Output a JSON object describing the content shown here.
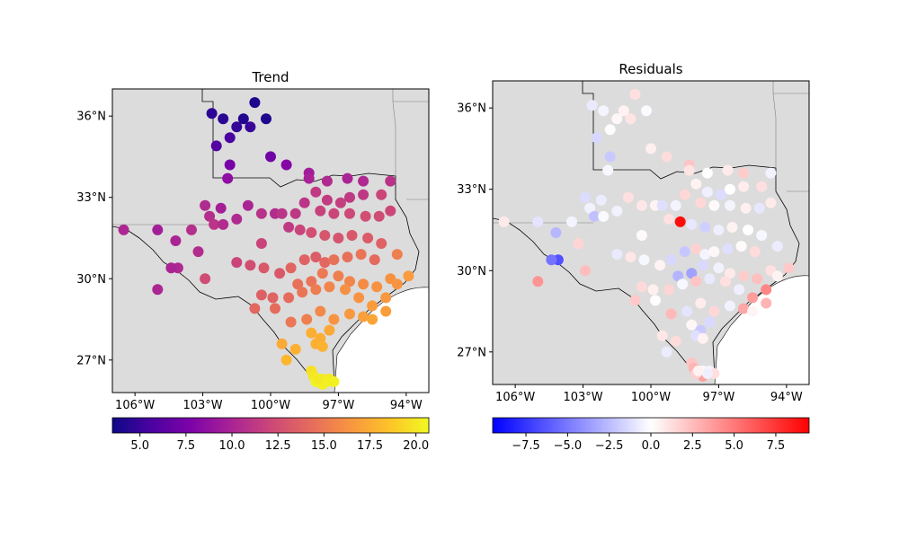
{
  "chart_data": [
    {
      "type": "scatter",
      "title": "Trend",
      "colormap": "plasma",
      "xlim": [
        -107,
        -93
      ],
      "ylim": [
        25.8,
        37.0
      ],
      "x_ticks": [
        -106,
        -103,
        -100,
        -97,
        -94
      ],
      "x_tick_labels": [
        "106°W",
        "103°W",
        "100°W",
        "97°W",
        "94°W"
      ],
      "y_ticks": [
        27,
        30,
        33,
        36
      ],
      "y_tick_labels": [
        "27°N",
        "30°N",
        "33°N",
        "36°N"
      ],
      "colorbar": {
        "vmin": 3.5,
        "vmax": 20.7,
        "ticks": [
          5.0,
          7.5,
          10.0,
          12.5,
          15.0,
          17.5,
          20.0
        ],
        "tick_labels": [
          "5.0",
          "7.5",
          "10.0",
          "12.5",
          "15.0",
          "17.5",
          "20.0"
        ]
      },
      "points": [
        [
          -100.7,
          36.5,
          4.0
        ],
        [
          -101.2,
          35.9,
          4.2
        ],
        [
          -100.2,
          35.9,
          4.1
        ],
        [
          -102.1,
          35.9,
          4.5
        ],
        [
          -102.6,
          36.1,
          4.6
        ],
        [
          -101.5,
          35.6,
          4.8
        ],
        [
          -100.9,
          35.6,
          5.0
        ],
        [
          -101.8,
          35.2,
          5.6
        ],
        [
          -102.4,
          34.9,
          6.0
        ],
        [
          -100.0,
          34.5,
          7.2
        ],
        [
          -101.8,
          34.2,
          7.5
        ],
        [
          -99.3,
          34.2,
          8.1
        ],
        [
          -101.9,
          33.7,
          8.6
        ],
        [
          -98.3,
          33.9,
          9.5
        ],
        [
          -98.3,
          33.7,
          9.9
        ],
        [
          -97.5,
          33.6,
          10.4
        ],
        [
          -96.6,
          33.7,
          10.0
        ],
        [
          -95.9,
          33.6,
          10.3
        ],
        [
          -94.7,
          33.6,
          10.9
        ],
        [
          -106.5,
          31.8,
          10.2
        ],
        [
          -105.0,
          31.8,
          9.6
        ],
        [
          -104.2,
          31.4,
          10.0
        ],
        [
          -103.5,
          31.8,
          10.6
        ],
        [
          -102.9,
          32.7,
          10.4
        ],
        [
          -102.7,
          32.3,
          10.6
        ],
        [
          -102.5,
          32.0,
          11.0
        ],
        [
          -102.2,
          32.6,
          9.7
        ],
        [
          -102.1,
          32.0,
          10.5
        ],
        [
          -101.5,
          32.2,
          10.4
        ],
        [
          -101.0,
          32.7,
          10.0
        ],
        [
          -100.4,
          32.4,
          10.9
        ],
        [
          -99.8,
          32.4,
          10.5
        ],
        [
          -99.5,
          32.4,
          11.0
        ],
        [
          -98.9,
          32.4,
          11.2
        ],
        [
          -98.5,
          32.8,
          11.0
        ],
        [
          -98.0,
          33.2,
          11.3
        ],
        [
          -97.5,
          32.9,
          11.4
        ],
        [
          -96.9,
          32.8,
          11.6
        ],
        [
          -96.5,
          33.0,
          11.3
        ],
        [
          -95.9,
          33.1,
          11.2
        ],
        [
          -95.1,
          33.1,
          12.0
        ],
        [
          -97.8,
          32.5,
          11.8
        ],
        [
          -97.2,
          32.4,
          12.0
        ],
        [
          -96.5,
          32.4,
          12.2
        ],
        [
          -95.8,
          32.3,
          12.5
        ],
        [
          -95.2,
          32.3,
          12.4
        ],
        [
          -94.7,
          32.5,
          12.1
        ],
        [
          -99.2,
          31.9,
          11.3
        ],
        [
          -98.7,
          31.8,
          11.9
        ],
        [
          -98.2,
          31.7,
          12.6
        ],
        [
          -97.6,
          31.6,
          13.0
        ],
        [
          -97.0,
          31.5,
          12.9
        ],
        [
          -96.4,
          31.6,
          13.2
        ],
        [
          -95.7,
          31.5,
          13.3
        ],
        [
          -95.1,
          31.3,
          13.7
        ],
        [
          -94.4,
          30.9,
          15.3
        ],
        [
          -100.4,
          31.3,
          11.9
        ],
        [
          -103.2,
          31.0,
          10.5
        ],
        [
          -104.1,
          30.4,
          10.3
        ],
        [
          -104.4,
          30.4,
          10.0
        ],
        [
          -105.0,
          29.6,
          10.1
        ],
        [
          -102.9,
          30.0,
          12.4
        ],
        [
          -101.5,
          30.6,
          12.0
        ],
        [
          -100.9,
          30.5,
          12.5
        ],
        [
          -100.3,
          30.4,
          13.2
        ],
        [
          -99.6,
          30.2,
          13.2
        ],
        [
          -99.1,
          30.4,
          13.9
        ],
        [
          -98.5,
          30.7,
          13.7
        ],
        [
          -98.0,
          30.8,
          13.4
        ],
        [
          -97.6,
          30.6,
          14.0
        ],
        [
          -97.2,
          30.7,
          14.6
        ],
        [
          -96.6,
          30.8,
          14.5
        ],
        [
          -96.0,
          30.9,
          14.7
        ],
        [
          -95.4,
          30.7,
          14.2
        ],
        [
          -94.7,
          30.0,
          16.3
        ],
        [
          -93.9,
          30.1,
          16.7
        ],
        [
          -94.4,
          29.8,
          16.4
        ],
        [
          -98.8,
          29.8,
          14.5
        ],
        [
          -98.2,
          29.9,
          14.7
        ],
        [
          -97.7,
          30.2,
          15.0
        ],
        [
          -97.0,
          30.1,
          15.3
        ],
        [
          -96.5,
          29.9,
          15.6
        ],
        [
          -95.9,
          29.8,
          16.0
        ],
        [
          -95.3,
          29.7,
          16.3
        ],
        [
          -94.9,
          29.3,
          16.6
        ],
        [
          -100.4,
          29.4,
          13.6
        ],
        [
          -99.9,
          29.3,
          13.8
        ],
        [
          -99.2,
          29.3,
          14.3
        ],
        [
          -98.6,
          29.5,
          14.8
        ],
        [
          -98.0,
          29.6,
          15.2
        ],
        [
          -97.4,
          29.7,
          15.6
        ],
        [
          -96.7,
          29.6,
          16.2
        ],
        [
          -96.1,
          29.3,
          16.4
        ],
        [
          -95.5,
          29.0,
          16.7
        ],
        [
          -94.9,
          28.8,
          16.8
        ],
        [
          -100.7,
          28.9,
          14.0
        ],
        [
          -99.8,
          28.9,
          14.3
        ],
        [
          -99.1,
          28.4,
          14.9
        ],
        [
          -98.4,
          28.5,
          15.3
        ],
        [
          -97.8,
          28.8,
          15.8
        ],
        [
          -97.2,
          28.5,
          16.4
        ],
        [
          -96.5,
          28.7,
          16.6
        ],
        [
          -95.9,
          28.6,
          16.9
        ],
        [
          -95.5,
          28.5,
          17.2
        ],
        [
          -97.4,
          28.1,
          17.3
        ],
        [
          -98.2,
          28.0,
          17.6
        ],
        [
          -97.8,
          27.8,
          17.6
        ],
        [
          -98.0,
          27.6,
          17.7
        ],
        [
          -99.5,
          27.6,
          17.4
        ],
        [
          -98.9,
          27.4,
          17.7
        ],
        [
          -97.7,
          27.5,
          17.8
        ],
        [
          -99.3,
          27.0,
          18.0
        ],
        [
          -98.2,
          26.6,
          19.8
        ],
        [
          -98.1,
          26.4,
          20.0
        ],
        [
          -97.7,
          26.3,
          20.2
        ],
        [
          -97.4,
          26.3,
          20.0
        ],
        [
          -97.7,
          26.1,
          20.3
        ],
        [
          -97.2,
          26.2,
          20.4
        ],
        [
          -98.0,
          26.2,
          20.5
        ],
        [
          -97.5,
          26.2,
          20.3
        ],
        [
          -97.9,
          26.3,
          20.1
        ]
      ]
    },
    {
      "type": "scatter",
      "title": "Residuals",
      "colormap": "bwr",
      "xlim": [
        -107,
        -93
      ],
      "ylim": [
        25.8,
        37.0
      ],
      "x_ticks": [
        -106,
        -103,
        -100,
        -97,
        -94
      ],
      "x_tick_labels": [
        "106°W",
        "103°W",
        "100°W",
        "97°W",
        "94°W"
      ],
      "y_ticks": [
        27,
        30,
        33,
        36
      ],
      "y_tick_labels": [
        "27°N",
        "30°N",
        "33°N",
        "36°N"
      ],
      "colorbar": {
        "vmin": -9.5,
        "vmax": 9.5,
        "ticks": [
          -7.5,
          -5.0,
          -2.5,
          0.0,
          2.5,
          5.0,
          7.5
        ],
        "tick_labels": [
          "−7.5",
          "−5.0",
          "−2.5",
          "0.0",
          "2.5",
          "5.0",
          "7.5"
        ]
      },
      "points": [
        [
          -100.7,
          36.5,
          1.2
        ],
        [
          -101.2,
          35.9,
          0.5
        ],
        [
          -100.2,
          35.9,
          -0.2
        ],
        [
          -102.1,
          35.9,
          -0.4
        ],
        [
          -102.6,
          36.1,
          -0.8
        ],
        [
          -101.5,
          35.6,
          0.3
        ],
        [
          -100.9,
          35.6,
          1.0
        ],
        [
          -101.8,
          35.2,
          0.1
        ],
        [
          -102.4,
          34.9,
          -1.5
        ],
        [
          -100.0,
          34.5,
          0.6
        ],
        [
          -101.8,
          34.2,
          -2.0
        ],
        [
          -99.3,
          34.2,
          1.3
        ],
        [
          -101.9,
          33.7,
          -0.3
        ],
        [
          -98.3,
          33.9,
          2.2
        ],
        [
          -98.3,
          33.7,
          1.0
        ],
        [
          -97.5,
          33.6,
          0.0
        ],
        [
          -96.6,
          33.7,
          0.8
        ],
        [
          -95.9,
          33.6,
          1.9
        ],
        [
          -94.7,
          33.6,
          -0.5
        ],
        [
          -106.5,
          31.8,
          0.8
        ],
        [
          -105.0,
          31.8,
          -1.0
        ],
        [
          -104.2,
          31.4,
          -2.7
        ],
        [
          -103.5,
          31.8,
          -0.4
        ],
        [
          -102.9,
          32.7,
          -1.3
        ],
        [
          -102.7,
          32.3,
          -0.5
        ],
        [
          -102.5,
          32.0,
          -2.3
        ],
        [
          -102.2,
          32.6,
          -0.7
        ],
        [
          -102.1,
          32.0,
          -0.2
        ],
        [
          -101.5,
          32.2,
          -0.5
        ],
        [
          -101.0,
          32.7,
          1.2
        ],
        [
          -100.4,
          32.4,
          0.9
        ],
        [
          -99.8,
          32.4,
          0.4
        ],
        [
          -99.5,
          32.4,
          -1.2
        ],
        [
          -98.9,
          32.4,
          -0.4
        ],
        [
          -98.5,
          32.8,
          1.5
        ],
        [
          -98.0,
          33.2,
          0.5
        ],
        [
          -97.5,
          32.9,
          -0.6
        ],
        [
          -96.9,
          32.8,
          -1.3
        ],
        [
          -96.5,
          33.0,
          0.0
        ],
        [
          -95.9,
          33.1,
          0.7
        ],
        [
          -95.1,
          33.1,
          1.2
        ],
        [
          -97.8,
          32.5,
          1.5
        ],
        [
          -97.2,
          32.4,
          0.2
        ],
        [
          -96.5,
          32.4,
          -0.4
        ],
        [
          -95.8,
          32.3,
          0.6
        ],
        [
          -95.2,
          32.3,
          -0.9
        ],
        [
          -94.7,
          32.5,
          0.8
        ],
        [
          -99.2,
          31.9,
          1.1
        ],
        [
          -98.7,
          31.8,
          9.0
        ],
        [
          -98.2,
          31.7,
          -0.9
        ],
        [
          -97.6,
          31.6,
          -1.8
        ],
        [
          -97.0,
          31.5,
          -0.6
        ],
        [
          -96.4,
          31.6,
          0.5
        ],
        [
          -95.7,
          31.5,
          0.0
        ],
        [
          -95.1,
          31.3,
          -0.3
        ],
        [
          -94.4,
          30.9,
          -0.7
        ],
        [
          -100.4,
          31.3,
          0.2
        ],
        [
          -103.2,
          31.0,
          1.6
        ],
        [
          -104.1,
          30.4,
          -6.5
        ],
        [
          -104.4,
          30.4,
          -5.2
        ],
        [
          -105.0,
          29.6,
          4.0
        ],
        [
          -102.9,
          30.0,
          2.5
        ],
        [
          -101.5,
          30.6,
          -0.8
        ],
        [
          -100.9,
          30.5,
          0.9
        ],
        [
          -100.3,
          30.4,
          -0.3
        ],
        [
          -99.6,
          30.2,
          0.5
        ],
        [
          -99.1,
          30.4,
          -1.5
        ],
        [
          -98.5,
          30.7,
          -2.1
        ],
        [
          -98.0,
          30.8,
          1.7
        ],
        [
          -97.6,
          30.6,
          -0.4
        ],
        [
          -97.2,
          30.7,
          0.3
        ],
        [
          -96.6,
          30.8,
          -1.2
        ],
        [
          -96.0,
          30.9,
          0.2
        ],
        [
          -95.4,
          30.7,
          1.3
        ],
        [
          -94.7,
          30.0,
          1.1
        ],
        [
          -93.9,
          30.1,
          2.0
        ],
        [
          -94.4,
          29.8,
          0.5
        ],
        [
          -98.8,
          29.8,
          -2.8
        ],
        [
          -98.2,
          29.9,
          -3.5
        ],
        [
          -97.7,
          30.2,
          -1.4
        ],
        [
          -97.0,
          30.1,
          -0.5
        ],
        [
          -96.5,
          29.9,
          0.8
        ],
        [
          -95.9,
          29.8,
          1.9
        ],
        [
          -95.3,
          29.7,
          2.4
        ],
        [
          -94.9,
          29.3,
          4.5
        ],
        [
          -100.4,
          29.4,
          1.4
        ],
        [
          -99.9,
          29.3,
          0.6
        ],
        [
          -99.2,
          29.3,
          1.6
        ],
        [
          -98.6,
          29.5,
          -0.3
        ],
        [
          -98.0,
          29.6,
          2.2
        ],
        [
          -97.4,
          29.7,
          -0.8
        ],
        [
          -96.7,
          29.6,
          1.2
        ],
        [
          -96.1,
          29.3,
          -0.6
        ],
        [
          -95.5,
          29.0,
          3.7
        ],
        [
          -94.9,
          28.8,
          2.8
        ],
        [
          -100.7,
          28.9,
          2.0
        ],
        [
          -99.8,
          28.9,
          0.1
        ],
        [
          -99.1,
          28.4,
          2.6
        ],
        [
          -98.4,
          28.5,
          -1.0
        ],
        [
          -97.8,
          28.8,
          0.7
        ],
        [
          -97.2,
          28.5,
          1.5
        ],
        [
          -96.5,
          28.7,
          -0.5
        ],
        [
          -95.9,
          28.6,
          3.3
        ],
        [
          -95.5,
          28.5,
          0.4
        ],
        [
          -97.4,
          28.1,
          -1.4
        ],
        [
          -98.2,
          28.0,
          0.3
        ],
        [
          -97.8,
          27.8,
          -2.0
        ],
        [
          -98.0,
          27.6,
          -1.2
        ],
        [
          -99.5,
          27.6,
          0.9
        ],
        [
          -98.9,
          27.4,
          1.3
        ],
        [
          -97.7,
          27.5,
          0.5
        ],
        [
          -99.3,
          27.0,
          -0.7
        ],
        [
          -98.2,
          26.6,
          2.2
        ],
        [
          -98.1,
          26.4,
          2.8
        ],
        [
          -97.7,
          26.3,
          0.3
        ],
        [
          -97.4,
          26.3,
          -0.4
        ],
        [
          -97.7,
          26.1,
          3.5
        ],
        [
          -97.2,
          26.2,
          1.2
        ],
        [
          -98.0,
          26.2,
          1.8
        ],
        [
          -97.5,
          26.2,
          -0.6
        ],
        [
          -97.9,
          26.3,
          0.5
        ]
      ]
    }
  ]
}
